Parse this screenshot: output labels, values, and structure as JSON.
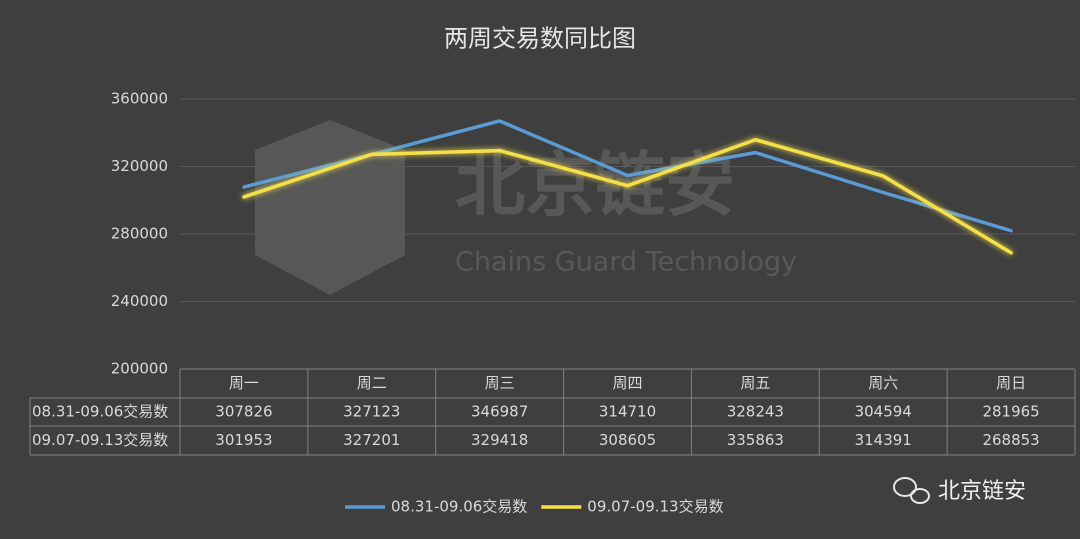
{
  "chart_data": {
    "type": "line",
    "title": "两周交易数同比图",
    "categories": [
      "周一",
      "周二",
      "周三",
      "周四",
      "周五",
      "周六",
      "周日"
    ],
    "series": [
      {
        "name": "08.31-09.06交易数",
        "color": "#5b9bd5",
        "values": [
          307826,
          327123,
          346987,
          314710,
          328243,
          304594,
          281965
        ]
      },
      {
        "name": "09.07-09.13交易数",
        "color": "#f5e04a",
        "values": [
          301953,
          327201,
          329418,
          308605,
          335863,
          314391,
          268853
        ]
      }
    ],
    "ylim": [
      200000,
      360000
    ],
    "yticks": [
      200000,
      240000,
      280000,
      320000,
      360000
    ],
    "grid": true,
    "legend": "bottom",
    "data_table": true,
    "watermark": {
      "text": "北京链安",
      "subtitle": "Chains Guard Technology"
    },
    "brand": "北京链安"
  }
}
